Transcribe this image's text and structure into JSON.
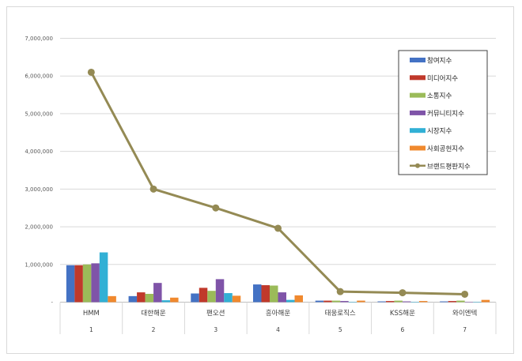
{
  "chart_data": {
    "type": "bar+line",
    "categories": [
      "HMM",
      "대한해운",
      "팬오션",
      "흥아해운",
      "태웅로직스",
      "KSS해운",
      "와이엔텍"
    ],
    "category_numbers": [
      "1",
      "2",
      "3",
      "4",
      "5",
      "6",
      "7"
    ],
    "yticks": [
      "-",
      "1,000,000",
      "2,000,000",
      "3,000,000",
      "4,000,000",
      "5,000,000",
      "6,000,000",
      "7,000,000"
    ],
    "ylim": [
      0,
      7000000
    ],
    "grid": true,
    "legend_position": "top-right",
    "series": [
      {
        "name": "참여지수",
        "kind": "bar",
        "color": "#4472c4",
        "values": [
          980000,
          160000,
          230000,
          470000,
          40000,
          20000,
          20000
        ]
      },
      {
        "name": "미디어지수",
        "kind": "bar",
        "color": "#c0392b",
        "values": [
          980000,
          260000,
          380000,
          450000,
          40000,
          30000,
          30000
        ]
      },
      {
        "name": "소통지수",
        "kind": "bar",
        "color": "#9bbb59",
        "values": [
          1000000,
          220000,
          300000,
          440000,
          40000,
          40000,
          40000
        ]
      },
      {
        "name": "커뮤니티지수",
        "kind": "bar",
        "color": "#7f54a8",
        "values": [
          1030000,
          510000,
          610000,
          260000,
          30000,
          20000,
          10000
        ]
      },
      {
        "name": "시장지수",
        "kind": "bar",
        "color": "#31b0d5",
        "values": [
          1320000,
          50000,
          240000,
          60000,
          10000,
          10000,
          10000
        ]
      },
      {
        "name": "사회공헌지수",
        "kind": "bar",
        "color": "#f0892e",
        "values": [
          160000,
          120000,
          170000,
          180000,
          40000,
          30000,
          60000
        ]
      },
      {
        "name": "브랜드평판지수",
        "kind": "line",
        "color": "#948a54",
        "values": [
          6100000,
          3000000,
          2500000,
          1960000,
          280000,
          250000,
          210000
        ]
      }
    ]
  }
}
